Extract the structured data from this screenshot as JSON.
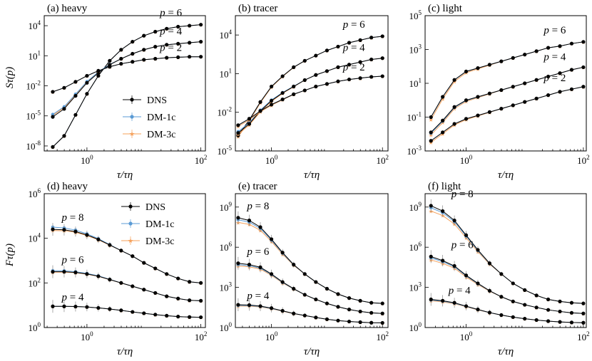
{
  "colors": {
    "DNS": "#000000",
    "DM-1c": "#5b9bd5",
    "DM-3c": "#f5a05a"
  },
  "chart_data": [
    {
      "type": "line",
      "title": "(a) heavy",
      "xlabel": "τ/τη",
      "ylabel": "Sτ(p)",
      "xscale": "log",
      "yscale": "log",
      "xlim_log10": [
        -0.75,
        2.08
      ],
      "ylim_log10": [
        -8.5,
        5.0
      ],
      "xticks": [
        {
          "exp": 0,
          "label": "10",
          "sup": "0"
        },
        {
          "exp": 2,
          "label": "10",
          "sup": "2"
        }
      ],
      "yticks": [
        {
          "exp": -8,
          "label": "10",
          "sup": "-8"
        },
        {
          "exp": -5,
          "label": "10",
          "sup": "-5"
        },
        {
          "exp": -2,
          "label": "10",
          "sup": "-2"
        },
        {
          "exp": 1,
          "label": "10",
          "sup": "1"
        },
        {
          "exp": 4,
          "label": "10",
          "sup": "4"
        }
      ],
      "legend": {
        "position": "center-right",
        "entries": [
          "DNS",
          "DM-1c",
          "DM-3c"
        ]
      },
      "series": [
        {
          "name": "DNS",
          "p": 6,
          "x_log10": [
            -0.6,
            -0.4,
            -0.2,
            0,
            0.2,
            0.4,
            0.6,
            0.8,
            1.0,
            1.2,
            1.4,
            1.6,
            1.8,
            2.0
          ],
          "y_log10": [
            -8.1,
            -7.0,
            -4.9,
            -2.8,
            -1.0,
            0.5,
            1.6,
            2.4,
            3.0,
            3.4,
            3.7,
            3.9,
            4.0,
            4.1
          ],
          "p_label": "p = 6"
        },
        {
          "name": "DNS",
          "p": 4,
          "x_log10": [
            -0.6,
            -0.4,
            -0.2,
            0,
            0.2,
            0.4,
            0.6,
            0.8,
            1.0,
            1.2,
            1.4,
            1.6,
            1.8,
            2.0
          ],
          "y_log10": [
            -5.1,
            -4.3,
            -3.0,
            -1.7,
            -0.7,
            0.1,
            0.7,
            1.2,
            1.6,
            1.9,
            2.1,
            2.2,
            2.3,
            2.4
          ],
          "p_label": "p = 4"
        },
        {
          "name": "DNS",
          "p": 2,
          "x_log10": [
            -0.6,
            -0.4,
            -0.2,
            0,
            0.2,
            0.4,
            0.6,
            0.8,
            1.0,
            1.2,
            1.4,
            1.6,
            1.8,
            2.0
          ],
          "y_log10": [
            -2.6,
            -2.2,
            -1.6,
            -1.0,
            -0.5,
            -0.1,
            0.2,
            0.4,
            0.6,
            0.7,
            0.8,
            0.85,
            0.9,
            0.9
          ],
          "p_label": "p = 2"
        }
      ]
    },
    {
      "type": "line",
      "title": "(b) tracer",
      "xlabel": "τ/τη",
      "xscale": "log",
      "yscale": "log",
      "xlim_log10": [
        -0.65,
        2.1
      ],
      "ylim_log10": [
        -5.0,
        5.5
      ],
      "xticks": [
        {
          "exp": 0,
          "label": "10",
          "sup": "0"
        },
        {
          "exp": 2,
          "label": "10",
          "sup": "2"
        }
      ],
      "yticks": [
        {
          "exp": -5,
          "label": "10",
          "sup": "-5"
        },
        {
          "exp": -2,
          "label": "10",
          "sup": "-2"
        },
        {
          "exp": 1,
          "label": "10",
          "sup": "1"
        },
        {
          "exp": 4,
          "label": "10",
          "sup": "4"
        }
      ],
      "series": [
        {
          "name": "DNS",
          "p": 6,
          "x_log10": [
            -0.6,
            -0.4,
            -0.2,
            0,
            0.2,
            0.4,
            0.6,
            0.8,
            1.0,
            1.2,
            1.4,
            1.6,
            1.8,
            2.0
          ],
          "y_log10": [
            -3.8,
            -2.6,
            -1.2,
            0.0,
            0.8,
            1.5,
            2.0,
            2.4,
            2.8,
            3.1,
            3.4,
            3.6,
            3.8,
            3.9
          ],
          "p_label": "p = 6"
        },
        {
          "name": "DNS",
          "p": 4,
          "x_log10": [
            -0.6,
            -0.4,
            -0.2,
            0,
            0.2,
            0.4,
            0.6,
            0.8,
            1.0,
            1.2,
            1.4,
            1.6,
            1.8,
            2.0
          ],
          "y_log10": [
            -3.6,
            -2.9,
            -1.9,
            -1.1,
            -0.5,
            0.0,
            0.5,
            0.9,
            1.2,
            1.5,
            1.7,
            1.9,
            2.1,
            2.2
          ],
          "p_label": "p = 4"
        },
        {
          "name": "DNS",
          "p": 2,
          "x_log10": [
            -0.6,
            -0.4,
            -0.2,
            0,
            0.2,
            0.4,
            0.6,
            0.8,
            1.0,
            1.2,
            1.4,
            1.6,
            1.8,
            2.0
          ],
          "y_log10": [
            -3.0,
            -2.5,
            -1.9,
            -1.4,
            -1.0,
            -0.6,
            -0.3,
            0.0,
            0.2,
            0.4,
            0.55,
            0.65,
            0.75,
            0.8
          ],
          "p_label": "p = 2"
        }
      ]
    },
    {
      "type": "line",
      "title": "(c) light",
      "xlabel": "τ/τη",
      "xscale": "log",
      "yscale": "log",
      "xlim_log10": [
        -0.7,
        2.05
      ],
      "ylim_log10": [
        -3.0,
        5.0
      ],
      "xticks": [
        {
          "exp": 0,
          "label": "10",
          "sup": "0"
        },
        {
          "exp": 2,
          "label": "10",
          "sup": "2"
        }
      ],
      "yticks": [
        {
          "exp": -3,
          "label": "10",
          "sup": "-3"
        },
        {
          "exp": -1,
          "label": "10",
          "sup": "-1"
        },
        {
          "exp": 1,
          "label": "10",
          "sup": "1"
        },
        {
          "exp": 3,
          "label": "10",
          "sup": "3"
        },
        {
          "exp": 5,
          "label": "10",
          "sup": "5"
        }
      ],
      "series": [
        {
          "name": "DNS",
          "p": 6,
          "x_log10": [
            -0.6,
            -0.4,
            -0.2,
            0,
            0.2,
            0.4,
            0.6,
            0.8,
            1.0,
            1.2,
            1.4,
            1.6,
            1.8,
            2.0
          ],
          "y_log10": [
            -1.0,
            0.2,
            1.2,
            1.7,
            1.9,
            2.1,
            2.3,
            2.5,
            2.7,
            2.9,
            3.1,
            3.2,
            3.35,
            3.45
          ],
          "p_label": "p = 6"
        },
        {
          "name": "DNS",
          "p": 4,
          "x_log10": [
            -0.6,
            -0.4,
            -0.2,
            0,
            0.2,
            0.4,
            0.6,
            0.8,
            1.0,
            1.2,
            1.4,
            1.6,
            1.8,
            2.0
          ],
          "y_log10": [
            -1.9,
            -1.2,
            -0.4,
            0.0,
            0.2,
            0.4,
            0.6,
            0.8,
            1.0,
            1.2,
            1.4,
            1.6,
            1.8,
            1.95
          ],
          "p_label": "p = 4"
        },
        {
          "name": "DNS",
          "p": 2,
          "x_log10": [
            -0.6,
            -0.4,
            -0.2,
            0,
            0.2,
            0.4,
            0.6,
            0.8,
            1.0,
            1.2,
            1.4,
            1.6,
            1.8,
            2.0
          ],
          "y_log10": [
            -2.4,
            -1.9,
            -1.4,
            -1.1,
            -0.9,
            -0.7,
            -0.5,
            -0.3,
            -0.1,
            0.1,
            0.3,
            0.5,
            0.65,
            0.8
          ],
          "p_label": "p = 2"
        }
      ]
    },
    {
      "type": "line",
      "title": "(d) heavy",
      "xlabel": "τ/τη",
      "ylabel": "Fτ(p)",
      "xscale": "log",
      "yscale": "log",
      "xlim_log10": [
        -0.75,
        2.08
      ],
      "ylim_log10": [
        0.0,
        6.0
      ],
      "xticks": [
        {
          "exp": 0,
          "label": "10",
          "sup": "0"
        },
        {
          "exp": 2,
          "label": "10",
          "sup": "2"
        }
      ],
      "yticks": [
        {
          "exp": 0,
          "label": "10",
          "sup": "0"
        },
        {
          "exp": 2,
          "label": "10",
          "sup": "2"
        },
        {
          "exp": 4,
          "label": "10",
          "sup": "4"
        },
        {
          "exp": 6,
          "label": "10",
          "sup": "6"
        }
      ],
      "legend": {
        "position": "top-center",
        "entries": [
          "DNS",
          "DM-1c",
          "DM-3c"
        ]
      },
      "series": [
        {
          "name": "DNS",
          "p": 8,
          "x_log10": [
            -0.6,
            -0.4,
            -0.2,
            0,
            0.2,
            0.4,
            0.6,
            0.8,
            1.0,
            1.2,
            1.4,
            1.6,
            1.8,
            2.0
          ],
          "y_log10": [
            4.4,
            4.38,
            4.3,
            4.15,
            3.95,
            3.7,
            3.45,
            3.2,
            2.9,
            2.65,
            2.4,
            2.2,
            2.05,
            2.0
          ],
          "p_label": "p = 8"
        },
        {
          "name": "DNS",
          "p": 6,
          "x_log10": [
            -0.6,
            -0.4,
            -0.2,
            0,
            0.2,
            0.4,
            0.6,
            0.8,
            1.0,
            1.2,
            1.4,
            1.6,
            1.8,
            2.0
          ],
          "y_log10": [
            2.5,
            2.5,
            2.47,
            2.4,
            2.3,
            2.15,
            2.0,
            1.85,
            1.7,
            1.55,
            1.4,
            1.3,
            1.22,
            1.2
          ],
          "p_label": "p = 6"
        },
        {
          "name": "DNS",
          "p": 4,
          "x_log10": [
            -0.6,
            -0.4,
            -0.2,
            0,
            0.2,
            0.4,
            0.6,
            0.8,
            1.0,
            1.2,
            1.4,
            1.6,
            1.8,
            2.0
          ],
          "y_log10": [
            0.95,
            0.95,
            0.94,
            0.92,
            0.88,
            0.83,
            0.77,
            0.7,
            0.64,
            0.58,
            0.53,
            0.49,
            0.47,
            0.46
          ],
          "p_label": "p = 4"
        }
      ]
    },
    {
      "type": "line",
      "title": "(e) tracer",
      "xlabel": "τ/τη",
      "xscale": "log",
      "yscale": "log",
      "xlim_log10": [
        -0.65,
        2.1
      ],
      "ylim_log10": [
        0.0,
        10.0
      ],
      "xticks": [
        {
          "exp": 0,
          "label": "10",
          "sup": "0"
        },
        {
          "exp": 2,
          "label": "10",
          "sup": "2"
        }
      ],
      "yticks": [
        {
          "exp": 0,
          "label": "10",
          "sup": "0"
        },
        {
          "exp": 3,
          "label": "10",
          "sup": "3"
        },
        {
          "exp": 6,
          "label": "10",
          "sup": "6"
        },
        {
          "exp": 9,
          "label": "10",
          "sup": "9"
        }
      ],
      "series": [
        {
          "name": "DNS",
          "p": 8,
          "x_log10": [
            -0.6,
            -0.4,
            -0.2,
            0,
            0.2,
            0.4,
            0.6,
            0.8,
            1.0,
            1.2,
            1.4,
            1.6,
            1.8,
            2.0
          ],
          "y_log10": [
            8.2,
            8.0,
            7.5,
            6.6,
            5.6,
            4.7,
            4.0,
            3.4,
            2.9,
            2.5,
            2.2,
            2.0,
            1.85,
            1.8
          ],
          "p_label": "p = 8"
        },
        {
          "name": "DNS",
          "p": 6,
          "x_log10": [
            -0.6,
            -0.4,
            -0.2,
            0,
            0.2,
            0.4,
            0.6,
            0.8,
            1.0,
            1.2,
            1.4,
            1.6,
            1.8,
            2.0
          ],
          "y_log10": [
            4.8,
            4.7,
            4.5,
            4.0,
            3.4,
            2.9,
            2.45,
            2.1,
            1.8,
            1.55,
            1.35,
            1.2,
            1.1,
            1.05
          ],
          "p_label": "p = 6"
        },
        {
          "name": "DNS",
          "p": 4,
          "x_log10": [
            -0.6,
            -0.4,
            -0.2,
            0,
            0.2,
            0.4,
            0.6,
            0.8,
            1.0,
            1.2,
            1.4,
            1.6,
            1.8,
            2.0
          ],
          "y_log10": [
            1.7,
            1.68,
            1.6,
            1.45,
            1.25,
            1.05,
            0.9,
            0.75,
            0.62,
            0.52,
            0.45,
            0.4,
            0.36,
            0.35
          ],
          "p_label": "p = 4"
        }
      ]
    },
    {
      "type": "line",
      "title": "(f) light",
      "xlabel": "τ/τη",
      "xscale": "log",
      "yscale": "log",
      "xlim_log10": [
        -0.7,
        2.05
      ],
      "ylim_log10": [
        0.0,
        10.0
      ],
      "xticks": [
        {
          "exp": 0,
          "label": "10",
          "sup": "0"
        },
        {
          "exp": 2,
          "label": "10",
          "sup": "2"
        }
      ],
      "yticks": [
        {
          "exp": 0,
          "label": "10",
          "sup": "0"
        },
        {
          "exp": 3,
          "label": "10",
          "sup": "3"
        },
        {
          "exp": 6,
          "label": "10",
          "sup": "6"
        },
        {
          "exp": 9,
          "label": "10",
          "sup": "9"
        }
      ],
      "series": [
        {
          "name": "DNS",
          "p": 8,
          "x_log10": [
            -0.6,
            -0.4,
            -0.2,
            0,
            0.2,
            0.4,
            0.6,
            0.8,
            1.0,
            1.2,
            1.4,
            1.6,
            1.8,
            2.0
          ],
          "y_log10": [
            9.1,
            8.7,
            8.0,
            6.9,
            5.8,
            4.8,
            4.0,
            3.3,
            2.8,
            2.4,
            2.1,
            1.95,
            1.85,
            1.8
          ],
          "p_label": "p = 8"
        },
        {
          "name": "DNS",
          "p": 6,
          "x_log10": [
            -0.6,
            -0.4,
            -0.2,
            0,
            0.2,
            0.4,
            0.6,
            0.8,
            1.0,
            1.2,
            1.4,
            1.6,
            1.8,
            2.0
          ],
          "y_log10": [
            5.3,
            5.0,
            4.6,
            3.9,
            3.3,
            2.75,
            2.3,
            1.95,
            1.7,
            1.5,
            1.32,
            1.2,
            1.1,
            1.05
          ],
          "p_label": "p = 6"
        },
        {
          "name": "DNS",
          "p": 4,
          "x_log10": [
            -0.6,
            -0.4,
            -0.2,
            0,
            0.2,
            0.4,
            0.6,
            0.8,
            1.0,
            1.2,
            1.4,
            1.6,
            1.8,
            2.0
          ],
          "y_log10": [
            2.1,
            2.0,
            1.85,
            1.6,
            1.35,
            1.12,
            0.93,
            0.78,
            0.66,
            0.56,
            0.48,
            0.42,
            0.38,
            0.36
          ],
          "p_label": "p = 4"
        }
      ]
    }
  ],
  "model_offsets": {
    "DM-1c": [
      [
        0,
        0.25,
        0
      ],
      [
        0,
        0.1,
        0
      ],
      [
        0,
        -0.05,
        0
      ],
      [
        0.1,
        0.05,
        0
      ],
      [
        -0.15,
        -0.1,
        -0.05
      ],
      [
        -0.15,
        -0.1,
        -0.05
      ]
    ],
    "DM-3c": [
      [
        0,
        0.15,
        0
      ],
      [
        -0.1,
        -0.1,
        -0.1
      ],
      [
        -0.15,
        -0.15,
        -0.1
      ],
      [
        -0.05,
        -0.02,
        0
      ],
      [
        -0.35,
        -0.2,
        -0.1
      ],
      [
        -0.4,
        -0.25,
        -0.1
      ]
    ]
  }
}
